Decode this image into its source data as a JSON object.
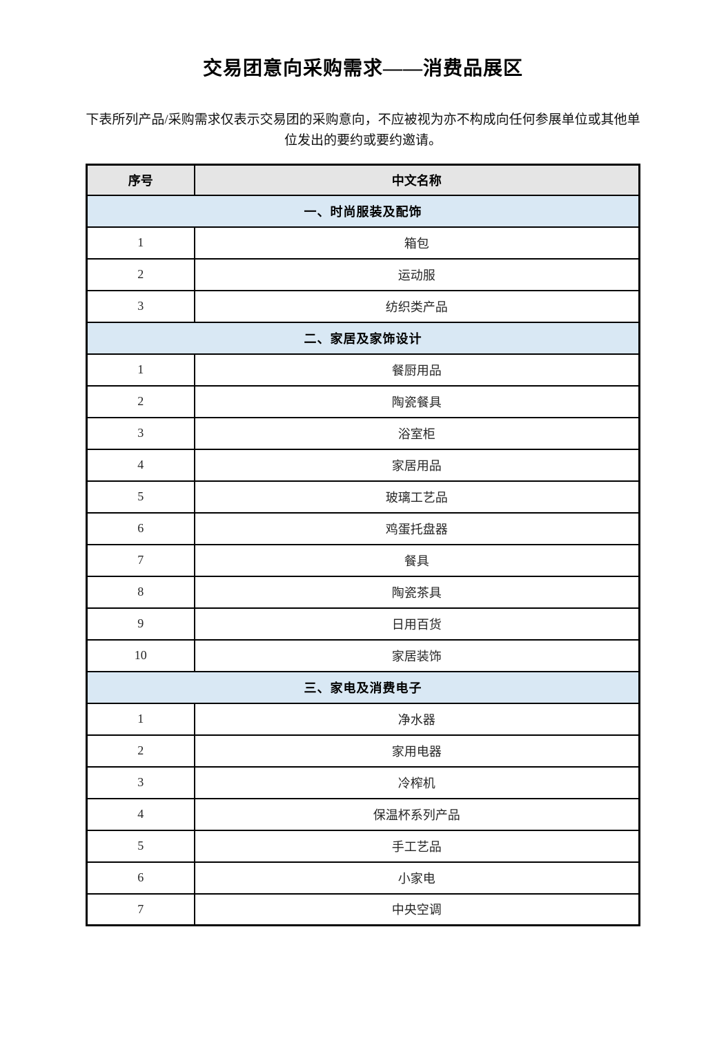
{
  "page": {
    "title": "交易团意向采购需求——消费品展区",
    "disclaimer": "下表所列产品/采购需求仅表示交易团的采购意向，不应被视为亦不构成向任何参展单位或其他单位发出的要约或要约邀请。"
  },
  "table": {
    "headers": [
      "序号",
      "中文名称"
    ],
    "sections": [
      {
        "title": "一、时尚服装及配饰",
        "items": [
          "箱包",
          "运动服",
          "纺织类产品"
        ]
      },
      {
        "title": "二、家居及家饰设计",
        "items": [
          "餐厨用品",
          "陶瓷餐具",
          "浴室柜",
          "家居用品",
          "玻璃工艺品",
          "鸡蛋托盘器",
          "餐具",
          "陶瓷茶具",
          "日用百货",
          "家居装饰"
        ]
      },
      {
        "title": "三、家电及消费电子",
        "items": [
          "净水器",
          "家用电器",
          "冷榨机",
          "保温杯系列产品",
          "手工艺品",
          "小家电",
          "中央空调"
        ]
      }
    ],
    "colors": {
      "header_bg": "#e5e5e5",
      "section_bg": "#d9e8f4",
      "border": "#000000",
      "text": "#262626"
    }
  }
}
